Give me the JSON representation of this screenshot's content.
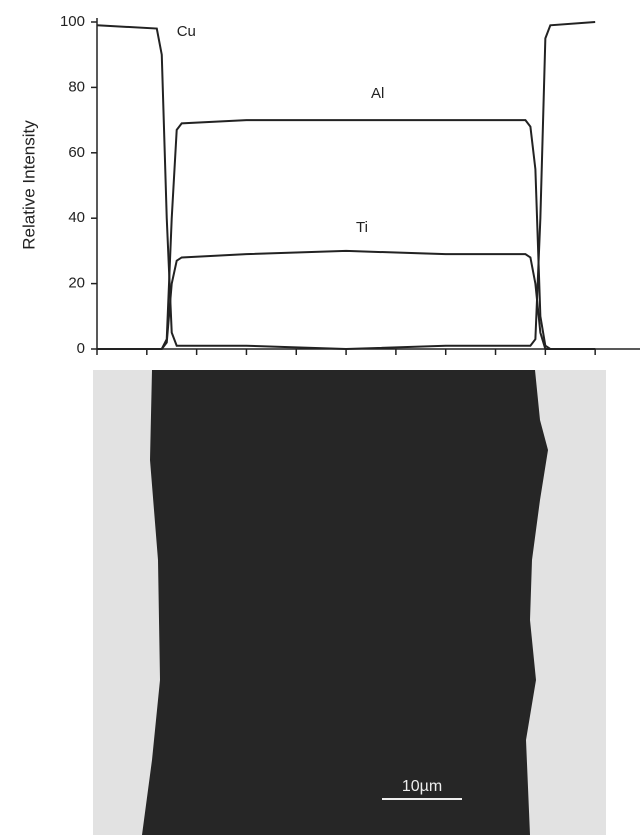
{
  "chart_data": {
    "type": "line",
    "y_label": "Relative Intensity",
    "x": [
      0,
      1.2,
      1.3,
      1.4,
      1.5,
      1.6,
      1.7,
      3,
      5,
      7,
      8.6,
      8.7,
      8.8,
      8.9,
      9.0,
      9.1,
      10
    ],
    "series": [
      {
        "name": "Cu",
        "color": "#222222",
        "values": [
          99,
          98,
          90,
          40,
          5,
          1,
          1,
          1,
          0,
          1,
          1,
          1,
          3,
          40,
          95,
          99,
          100
        ]
      },
      {
        "name": "Al",
        "color": "#222222",
        "values": [
          0,
          0,
          0,
          3,
          40,
          67,
          69,
          70,
          70,
          70,
          70,
          68,
          55,
          10,
          1,
          0,
          0
        ]
      },
      {
        "name": "Ti",
        "color": "#222222",
        "values": [
          0,
          0,
          0,
          2,
          20,
          27,
          28,
          29,
          30,
          29,
          29,
          28,
          20,
          5,
          0,
          0,
          0
        ]
      }
    ],
    "xlim": [
      0,
      10.9
    ],
    "xticks": [
      0,
      1,
      2,
      3,
      4,
      5,
      6,
      7,
      8,
      9,
      10
    ],
    "ylim": [
      0,
      100
    ],
    "yticks": [
      0,
      20,
      40,
      60,
      80,
      100
    ],
    "grid": false
  },
  "micrograph": {
    "scale_bar": "10µm"
  }
}
